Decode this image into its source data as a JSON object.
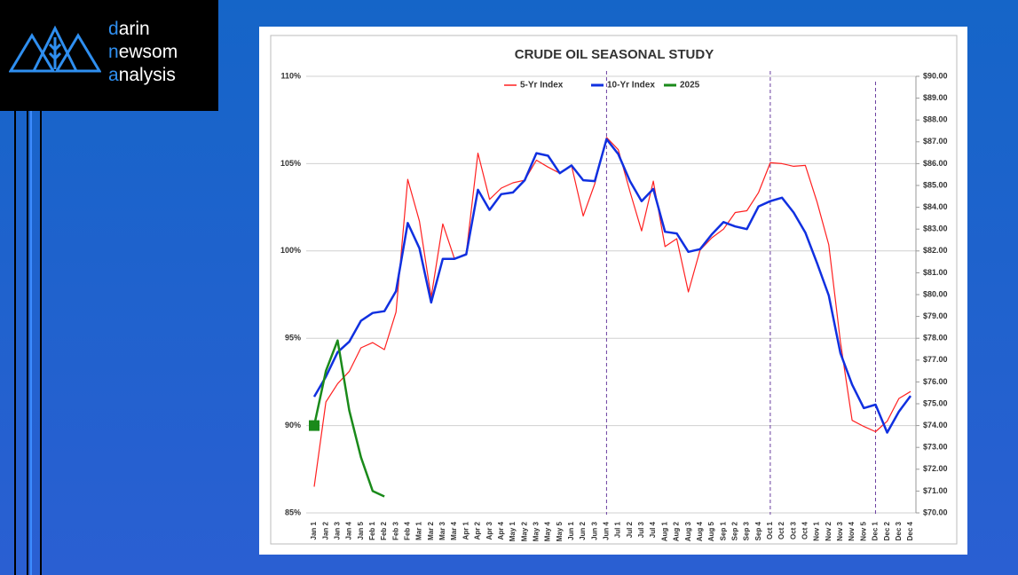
{
  "logo": {
    "lines": [
      "darin",
      "newsom",
      "analysis"
    ]
  },
  "chart_data": {
    "type": "line",
    "title": "CRUDE OIL SEASONAL STUDY",
    "categories": [
      "Jan 1",
      "Jan 2",
      "Jan 3",
      "Jan 4",
      "Jan 5",
      "Feb 1",
      "Feb 2",
      "Feb 3",
      "Feb 4",
      "Mar 1",
      "Mar 2",
      "Mar 3",
      "Mar 4",
      "Apr 1",
      "Apr 2",
      "Apr 3",
      "Apr 4",
      "May 1",
      "May 2",
      "May 3",
      "May 4",
      "May 5",
      "Jun 1",
      "Jun 2",
      "Jun 3",
      "Jun 4",
      "Jul 1",
      "Jul 2",
      "Jul 3",
      "Jul 4",
      "Aug 1",
      "Aug 2",
      "Aug 3",
      "Aug 4",
      "Aug 5",
      "Sep 1",
      "Sep 2",
      "Sep 3",
      "Sep 4",
      "Oct 1",
      "Oct 2",
      "Oct 3",
      "Oct 4",
      "Nov 1",
      "Nov 2",
      "Nov 3",
      "Nov 4",
      "Nov 5",
      "Dec 1",
      "Dec 2",
      "Dec 3",
      "Dec 4"
    ],
    "series": [
      {
        "name": "5-Yr Index",
        "color": "#ff2020",
        "values": [
          86.5,
          91.35,
          92.4,
          93.1,
          94.45,
          94.75,
          94.35,
          96.5,
          104.1,
          101.7,
          97.35,
          101.55,
          99.55,
          99.85,
          105.6,
          102.95,
          103.6,
          103.9,
          104.05,
          105.2,
          104.8,
          104.45,
          104.9,
          102.0,
          103.85,
          106.5,
          105.8,
          103.4,
          101.15,
          104.0,
          100.25,
          100.7,
          97.65,
          100.05,
          100.75,
          101.25,
          102.2,
          102.3,
          103.35,
          105.05,
          105.0,
          104.85,
          104.9,
          102.8,
          100.35,
          94.8,
          90.3,
          89.95,
          89.65,
          90.25,
          91.55,
          91.95
        ]
      },
      {
        "name": "10-Yr Index",
        "color": "#1030e0",
        "values": [
          91.65,
          92.8,
          94.2,
          94.8,
          96.0,
          96.45,
          96.55,
          97.7,
          101.6,
          100.15,
          97.05,
          99.55,
          99.55,
          99.8,
          103.5,
          102.35,
          103.25,
          103.35,
          104.05,
          105.6,
          105.45,
          104.45,
          104.9,
          104.05,
          104.0,
          106.4,
          105.55,
          104.0,
          102.85,
          103.55,
          101.1,
          101.0,
          99.95,
          100.1,
          100.95,
          101.65,
          101.4,
          101.25,
          102.55,
          102.85,
          103.05,
          102.2,
          101.05,
          99.3,
          97.45,
          94.15,
          92.35,
          91.0,
          91.2,
          89.6,
          90.8,
          91.7
        ]
      },
      {
        "name": "2025",
        "color": "#1a8a1a",
        "axis": "y2",
        "values": [
          74.0,
          76.5,
          77.9,
          74.7,
          72.55,
          71.0,
          70.75,
          null,
          null,
          null,
          null,
          null,
          null,
          null,
          null,
          null,
          null,
          null,
          null,
          null,
          null,
          null,
          null,
          null,
          null,
          null,
          null,
          null,
          null,
          null,
          null,
          null,
          null,
          null,
          null,
          null,
          null,
          null,
          null,
          null,
          null,
          null,
          null,
          null,
          null,
          null,
          null,
          null,
          null,
          null,
          null,
          null
        ]
      }
    ],
    "ylim": [
      85,
      110
    ],
    "yticks": [
      {
        "value": 85,
        "label": "85%"
      },
      {
        "value": 90,
        "label": "90%"
      },
      {
        "value": 95,
        "label": "95%"
      },
      {
        "value": 100,
        "label": "100%"
      },
      {
        "value": 105,
        "label": "105%"
      },
      {
        "value": 110,
        "label": "110%"
      }
    ],
    "y2lim": [
      70,
      90
    ],
    "y2ticks": [
      {
        "value": 70,
        "label": "$70.00"
      },
      {
        "value": 71,
        "label": "$71.00"
      },
      {
        "value": 72,
        "label": "$72.00"
      },
      {
        "value": 73,
        "label": "$73.00"
      },
      {
        "value": 74,
        "label": "$74.00"
      },
      {
        "value": 75,
        "label": "$75.00"
      },
      {
        "value": 76,
        "label": "$76.00"
      },
      {
        "value": 77,
        "label": "$77.00"
      },
      {
        "value": 78,
        "label": "$78.00"
      },
      {
        "value": 79,
        "label": "$79.00"
      },
      {
        "value": 80,
        "label": "$80.00"
      },
      {
        "value": 81,
        "label": "$81.00"
      },
      {
        "value": 82,
        "label": "$82.00"
      },
      {
        "value": 83,
        "label": "$83.00"
      },
      {
        "value": 84,
        "label": "$84.00"
      },
      {
        "value": 85,
        "label": "$85.00"
      },
      {
        "value": 86,
        "label": "$86.00"
      },
      {
        "value": 87,
        "label": "$87.00"
      },
      {
        "value": 88,
        "label": "$88.00"
      },
      {
        "value": 89,
        "label": "$89.00"
      },
      {
        "value": 90,
        "label": "$90.00"
      }
    ],
    "grid": true,
    "legend": "top"
  }
}
